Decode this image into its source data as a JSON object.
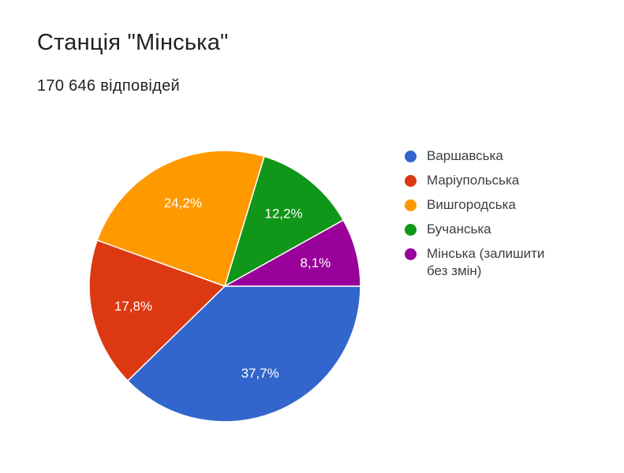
{
  "header": {
    "title": "Станція \"Мінська\"",
    "subtitle": "170 646 відповідей"
  },
  "chart_data": {
    "type": "pie",
    "title": "Станція \"Мінська\"",
    "subtitle": "170 646 відповідей",
    "legend_position": "right",
    "slices": [
      {
        "name": "Варшавська",
        "value": 37.7,
        "label": "37,7%",
        "color": "#3366cc"
      },
      {
        "name": "Маріупольська",
        "value": 17.8,
        "label": "17,8%",
        "color": "#dc3912"
      },
      {
        "name": "Вишгородська",
        "value": 24.2,
        "label": "24,2%",
        "color": "#ff9900"
      },
      {
        "name": "Бучанська",
        "value": 12.2,
        "label": "12,2%",
        "color": "#109618"
      },
      {
        "name": "Мінська (залишити без змін)",
        "value": 8.1,
        "label": "8,1%",
        "color": "#990099"
      }
    ]
  }
}
